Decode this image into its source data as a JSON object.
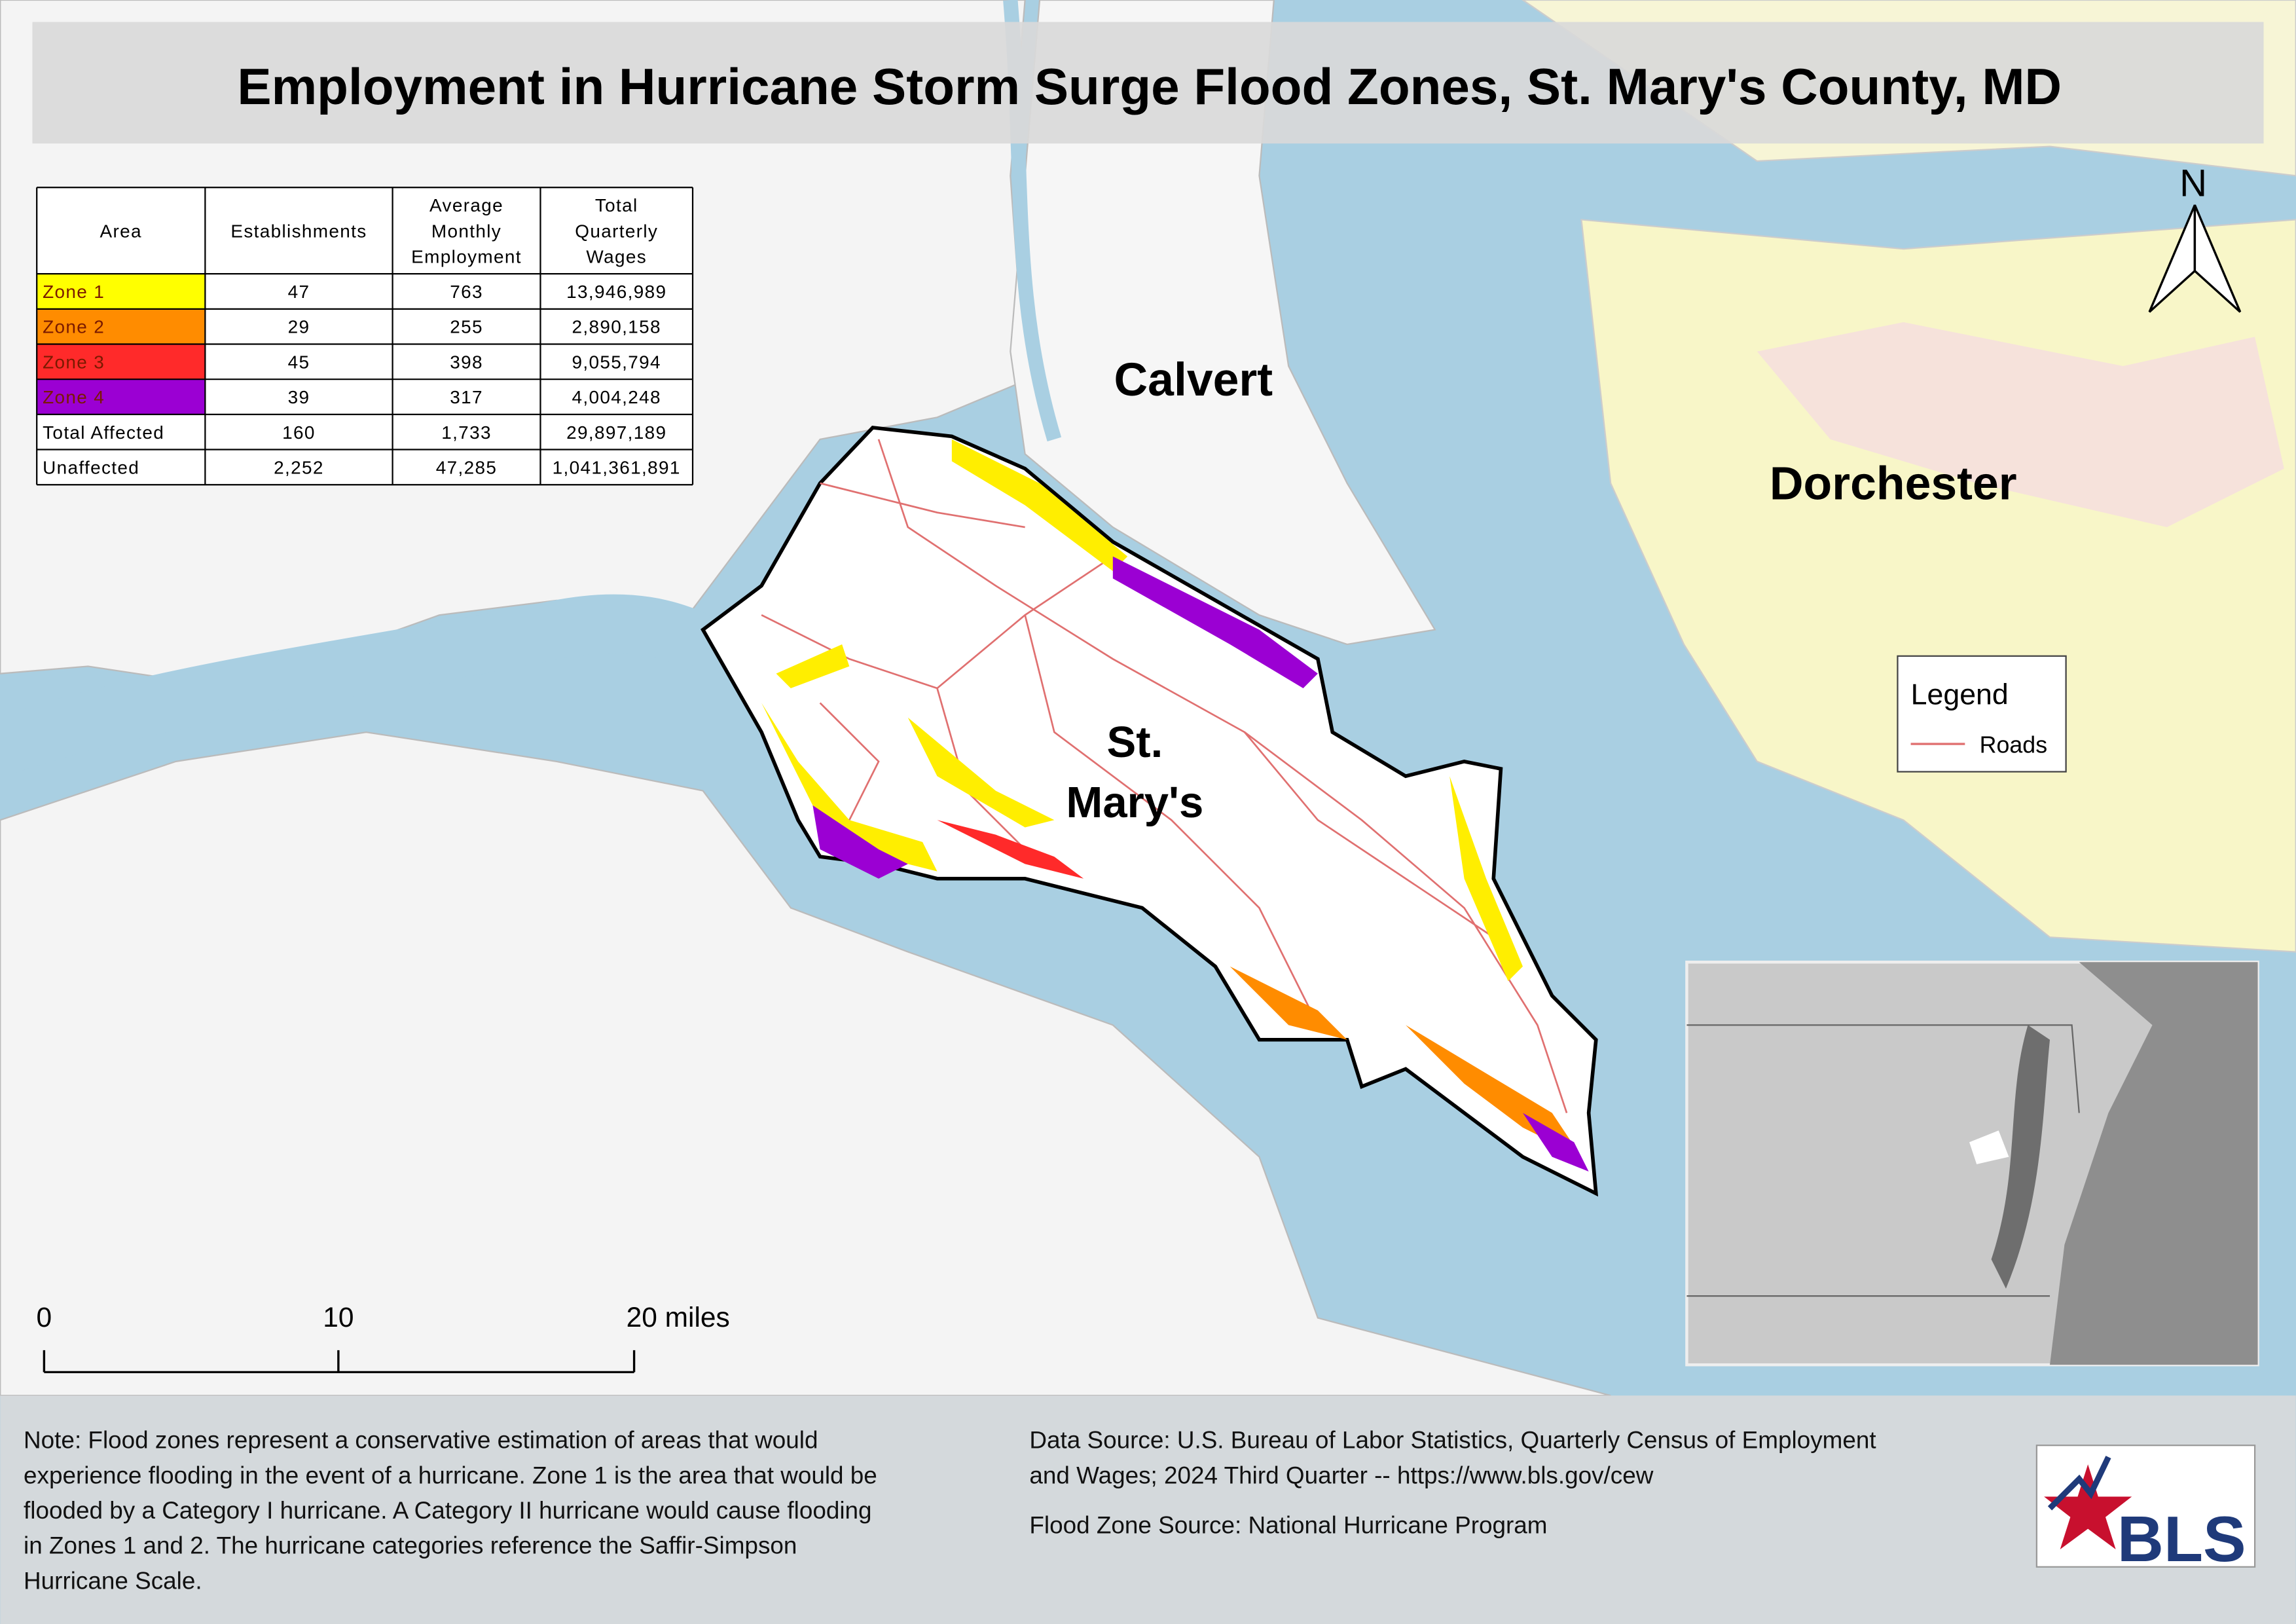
{
  "title": "Employment in Hurricane Storm Surge Flood Zones, St. Mary's County, MD",
  "table": {
    "headers": [
      [
        "Area"
      ],
      [
        "Establishments"
      ],
      [
        "Average",
        "Monthly",
        "Employment"
      ],
      [
        "Total",
        "Quarterly",
        "Wages"
      ]
    ],
    "rows": [
      [
        "Zone 1",
        "47",
        "763",
        "13,946,989"
      ],
      [
        "Zone 2",
        "29",
        "255",
        "2,890,158"
      ],
      [
        "Zone 3",
        "45",
        "398",
        "9,055,794"
      ],
      [
        "Zone 4",
        "39",
        "317",
        "4,004,248"
      ],
      [
        "Total Affected",
        "160",
        "1,733",
        "29,897,189"
      ],
      [
        "Unaffected",
        "2,252",
        "47,285",
        "1,041,361,891"
      ]
    ]
  },
  "map_labels": {
    "calvert": "Calvert",
    "dorchester": "Dorchester",
    "st_marys": [
      "St.",
      "Mary's"
    ]
  },
  "north": "N",
  "legend": {
    "title": "Legend",
    "items": [
      "Roads"
    ]
  },
  "scale_bar": [
    "0",
    "10",
    "20 miles"
  ],
  "note": [
    "Note: Flood zones represent a conservative estimation of areas that would",
    "experience flooding in the event of a hurricane. Zone 1 is the area that would be",
    "flooded by a Category I hurricane. A Category II hurricane would cause flooding",
    "in Zones 1 and 2. The hurricane categories reference the Saffir-Simpson",
    "Hurricane Scale."
  ],
  "data_source": [
    "Data Source: U.S. Bureau of Labor Statistics, Quarterly Census of Employment",
    "and Wages; 2024 Third Quarter -- https://www.bls.gov/cew"
  ],
  "flood_source": "Flood Zone Source: National Hurricane Program",
  "logo": "BLS"
}
